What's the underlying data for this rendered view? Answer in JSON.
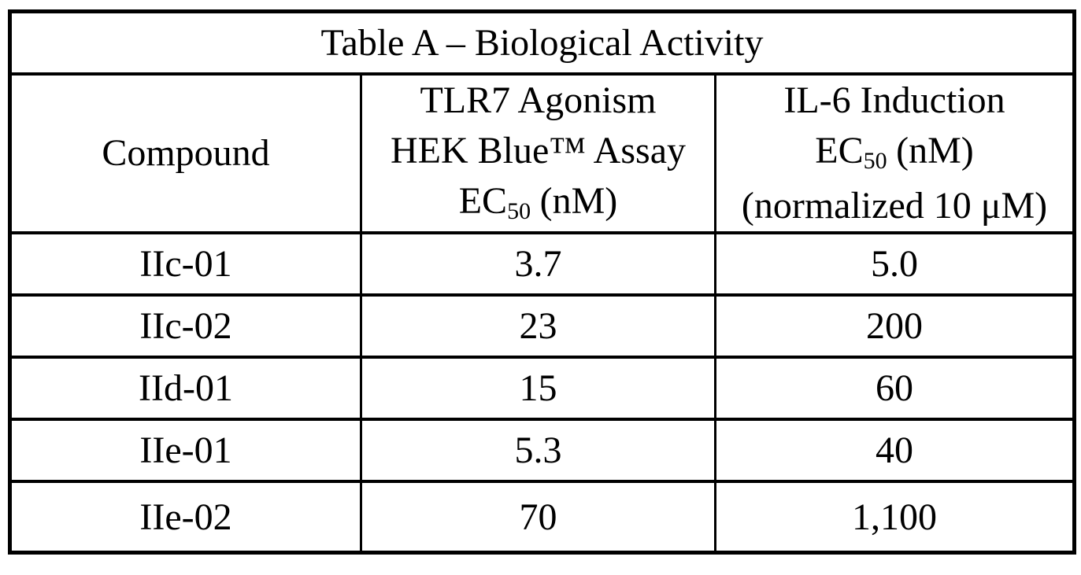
{
  "table": {
    "title": "Table A – Biological Activity",
    "header": {
      "compound": "Compound",
      "tlr7": {
        "line1": "TLR7 Agonism",
        "line2": "HEK Blue™ Assay",
        "ec_prefix": "EC",
        "ec_sub": "50",
        "ec_unit": "(nM)"
      },
      "il6": {
        "line1": "IL-6 Induction",
        "ec_prefix": "EC",
        "ec_sub": "50",
        "ec_unit": "(nM)",
        "line3": "(normalized 10 μM)"
      }
    },
    "rows": [
      {
        "compound": "IIc-01",
        "tlr7_ec50_nm": "3.7",
        "il6_ec50_nm": "5.0"
      },
      {
        "compound": "IIc-02",
        "tlr7_ec50_nm": "23",
        "il6_ec50_nm": "200"
      },
      {
        "compound": "IId-01",
        "tlr7_ec50_nm": "15",
        "il6_ec50_nm": "60"
      },
      {
        "compound": "IIe-01",
        "tlr7_ec50_nm": "5.3",
        "il6_ec50_nm": "40"
      },
      {
        "compound": "IIe-02",
        "tlr7_ec50_nm": "70",
        "il6_ec50_nm": "1,100"
      }
    ]
  }
}
